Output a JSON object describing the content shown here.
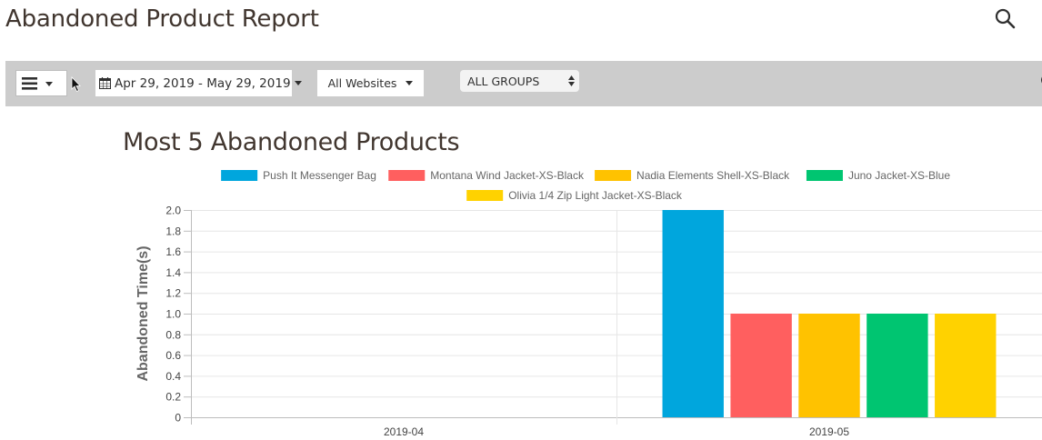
{
  "page": {
    "title": "Abandoned Product Report"
  },
  "header": {
    "search_icon": "search-icon"
  },
  "toolbar": {
    "menu_icon": "hamburger-icon",
    "date_range": "Apr 29, 2019 - May 29, 2019",
    "website": "All Websites",
    "group": "ALL GROUPS"
  },
  "chart_data": {
    "type": "bar",
    "title": "Most 5 Abandoned Products",
    "ylabel": "Abandoned Time(s)",
    "xlabel": "",
    "categories": [
      "2019-04",
      "2019-05"
    ],
    "ylim": [
      0,
      2.0
    ],
    "yticks": [
      "0",
      "0.2",
      "0.4",
      "0.6",
      "0.8",
      "1.0",
      "1.2",
      "1.4",
      "1.6",
      "1.8",
      "2.0"
    ],
    "grid": true,
    "legend_position": "top",
    "series": [
      {
        "name": "Push It Messenger Bag",
        "color": "#00a6dd",
        "values": [
          0,
          2
        ]
      },
      {
        "name": "Montana Wind Jacket-XS-Black",
        "color": "#ff5f5f",
        "values": [
          0,
          1
        ]
      },
      {
        "name": "Nadia Elements Shell-XS-Black",
        "color": "#ffc200",
        "values": [
          0,
          1
        ]
      },
      {
        "name": "Juno Jacket-XS-Blue",
        "color": "#00c571",
        "values": [
          0,
          1
        ]
      },
      {
        "name": "Olivia 1/4 Zip Light Jacket-XS-Black",
        "color": "#ffd200",
        "values": [
          0,
          1
        ]
      }
    ]
  }
}
